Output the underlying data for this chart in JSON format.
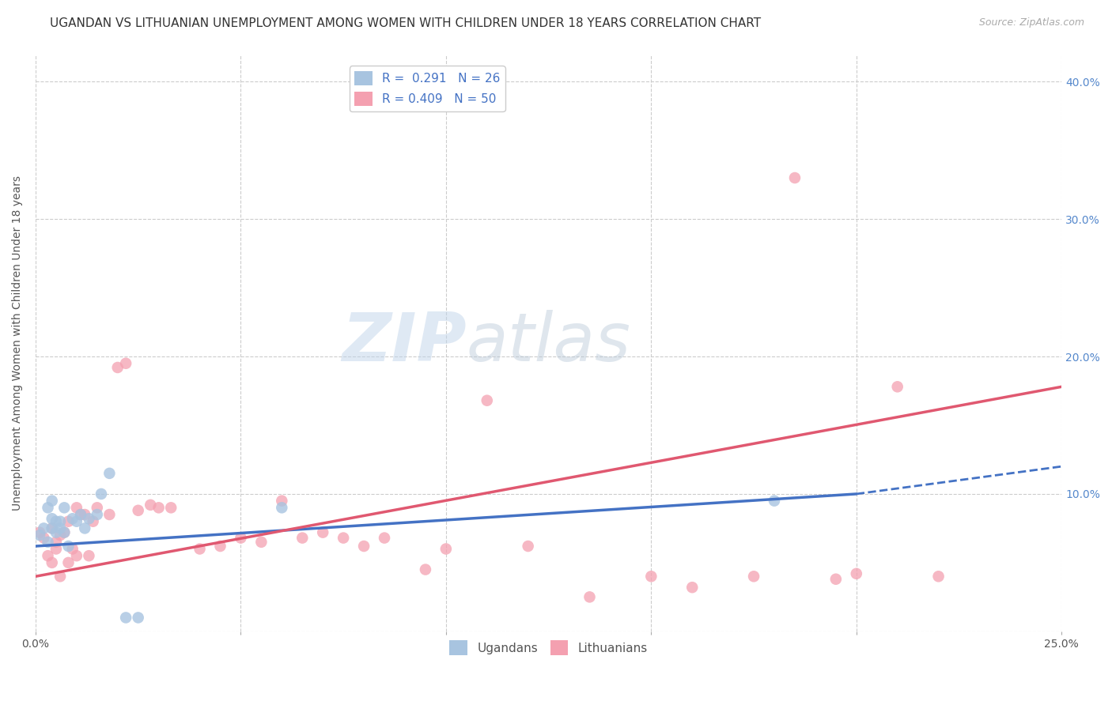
{
  "title": "UGANDAN VS LITHUANIAN UNEMPLOYMENT AMONG WOMEN WITH CHILDREN UNDER 18 YEARS CORRELATION CHART",
  "source": "Source: ZipAtlas.com",
  "ylabel": "Unemployment Among Women with Children Under 18 years",
  "xlim": [
    0.0,
    0.25
  ],
  "ylim": [
    0.0,
    0.42
  ],
  "xticks": [
    0.0,
    0.05,
    0.1,
    0.15,
    0.2,
    0.25
  ],
  "yticks": [
    0.0,
    0.1,
    0.2,
    0.3,
    0.4
  ],
  "xticklabels": [
    "0.0%",
    "",
    "",
    "",
    "",
    "25.0%"
  ],
  "right_yticklabels": [
    "",
    "10.0%",
    "20.0%",
    "30.0%",
    "40.0%"
  ],
  "ugandan_R": 0.291,
  "ugandan_N": 26,
  "lithuanian_R": 0.409,
  "lithuanian_N": 50,
  "ugandan_color": "#a8c4e0",
  "lithuanian_color": "#f4a0b0",
  "ugandan_line_color": "#4472c4",
  "lithuanian_line_color": "#e05870",
  "ugandan_x": [
    0.001,
    0.002,
    0.003,
    0.003,
    0.004,
    0.004,
    0.004,
    0.005,
    0.005,
    0.006,
    0.006,
    0.007,
    0.007,
    0.008,
    0.009,
    0.01,
    0.011,
    0.012,
    0.013,
    0.015,
    0.016,
    0.018,
    0.022,
    0.025,
    0.06,
    0.18
  ],
  "ugandan_y": [
    0.07,
    0.075,
    0.065,
    0.09,
    0.075,
    0.082,
    0.095,
    0.072,
    0.08,
    0.075,
    0.08,
    0.072,
    0.09,
    0.062,
    0.082,
    0.08,
    0.085,
    0.075,
    0.082,
    0.085,
    0.1,
    0.115,
    0.01,
    0.01,
    0.09,
    0.095
  ],
  "lithuanian_x": [
    0.001,
    0.002,
    0.003,
    0.004,
    0.004,
    0.005,
    0.005,
    0.006,
    0.006,
    0.007,
    0.008,
    0.008,
    0.009,
    0.01,
    0.01,
    0.011,
    0.012,
    0.013,
    0.014,
    0.015,
    0.018,
    0.02,
    0.022,
    0.025,
    0.028,
    0.03,
    0.033,
    0.04,
    0.045,
    0.05,
    0.055,
    0.06,
    0.065,
    0.07,
    0.075,
    0.08,
    0.085,
    0.095,
    0.1,
    0.11,
    0.12,
    0.135,
    0.15,
    0.16,
    0.175,
    0.185,
    0.195,
    0.2,
    0.21,
    0.22
  ],
  "lithuanian_y": [
    0.072,
    0.068,
    0.055,
    0.075,
    0.05,
    0.06,
    0.065,
    0.07,
    0.04,
    0.072,
    0.08,
    0.05,
    0.06,
    0.055,
    0.09,
    0.085,
    0.085,
    0.055,
    0.08,
    0.09,
    0.085,
    0.192,
    0.195,
    0.088,
    0.092,
    0.09,
    0.09,
    0.06,
    0.062,
    0.068,
    0.065,
    0.095,
    0.068,
    0.072,
    0.068,
    0.062,
    0.068,
    0.045,
    0.06,
    0.168,
    0.062,
    0.025,
    0.04,
    0.032,
    0.04,
    0.33,
    0.038,
    0.042,
    0.178,
    0.04
  ],
  "ugandan_trend_x0": 0.0,
  "ugandan_trend_y0": 0.062,
  "ugandan_trend_x1": 0.2,
  "ugandan_trend_y1": 0.1,
  "ugandan_trend_ext_x1": 0.25,
  "ugandan_trend_ext_y1": 0.12,
  "lithuanian_trend_x0": 0.0,
  "lithuanian_trend_y0": 0.04,
  "lithuanian_trend_x1": 0.25,
  "lithuanian_trend_y1": 0.178,
  "background_color": "#ffffff",
  "grid_color": "#cccccc",
  "title_fontsize": 11,
  "axis_label_fontsize": 10,
  "tick_fontsize": 10,
  "legend_fontsize": 11,
  "marker_size": 110
}
